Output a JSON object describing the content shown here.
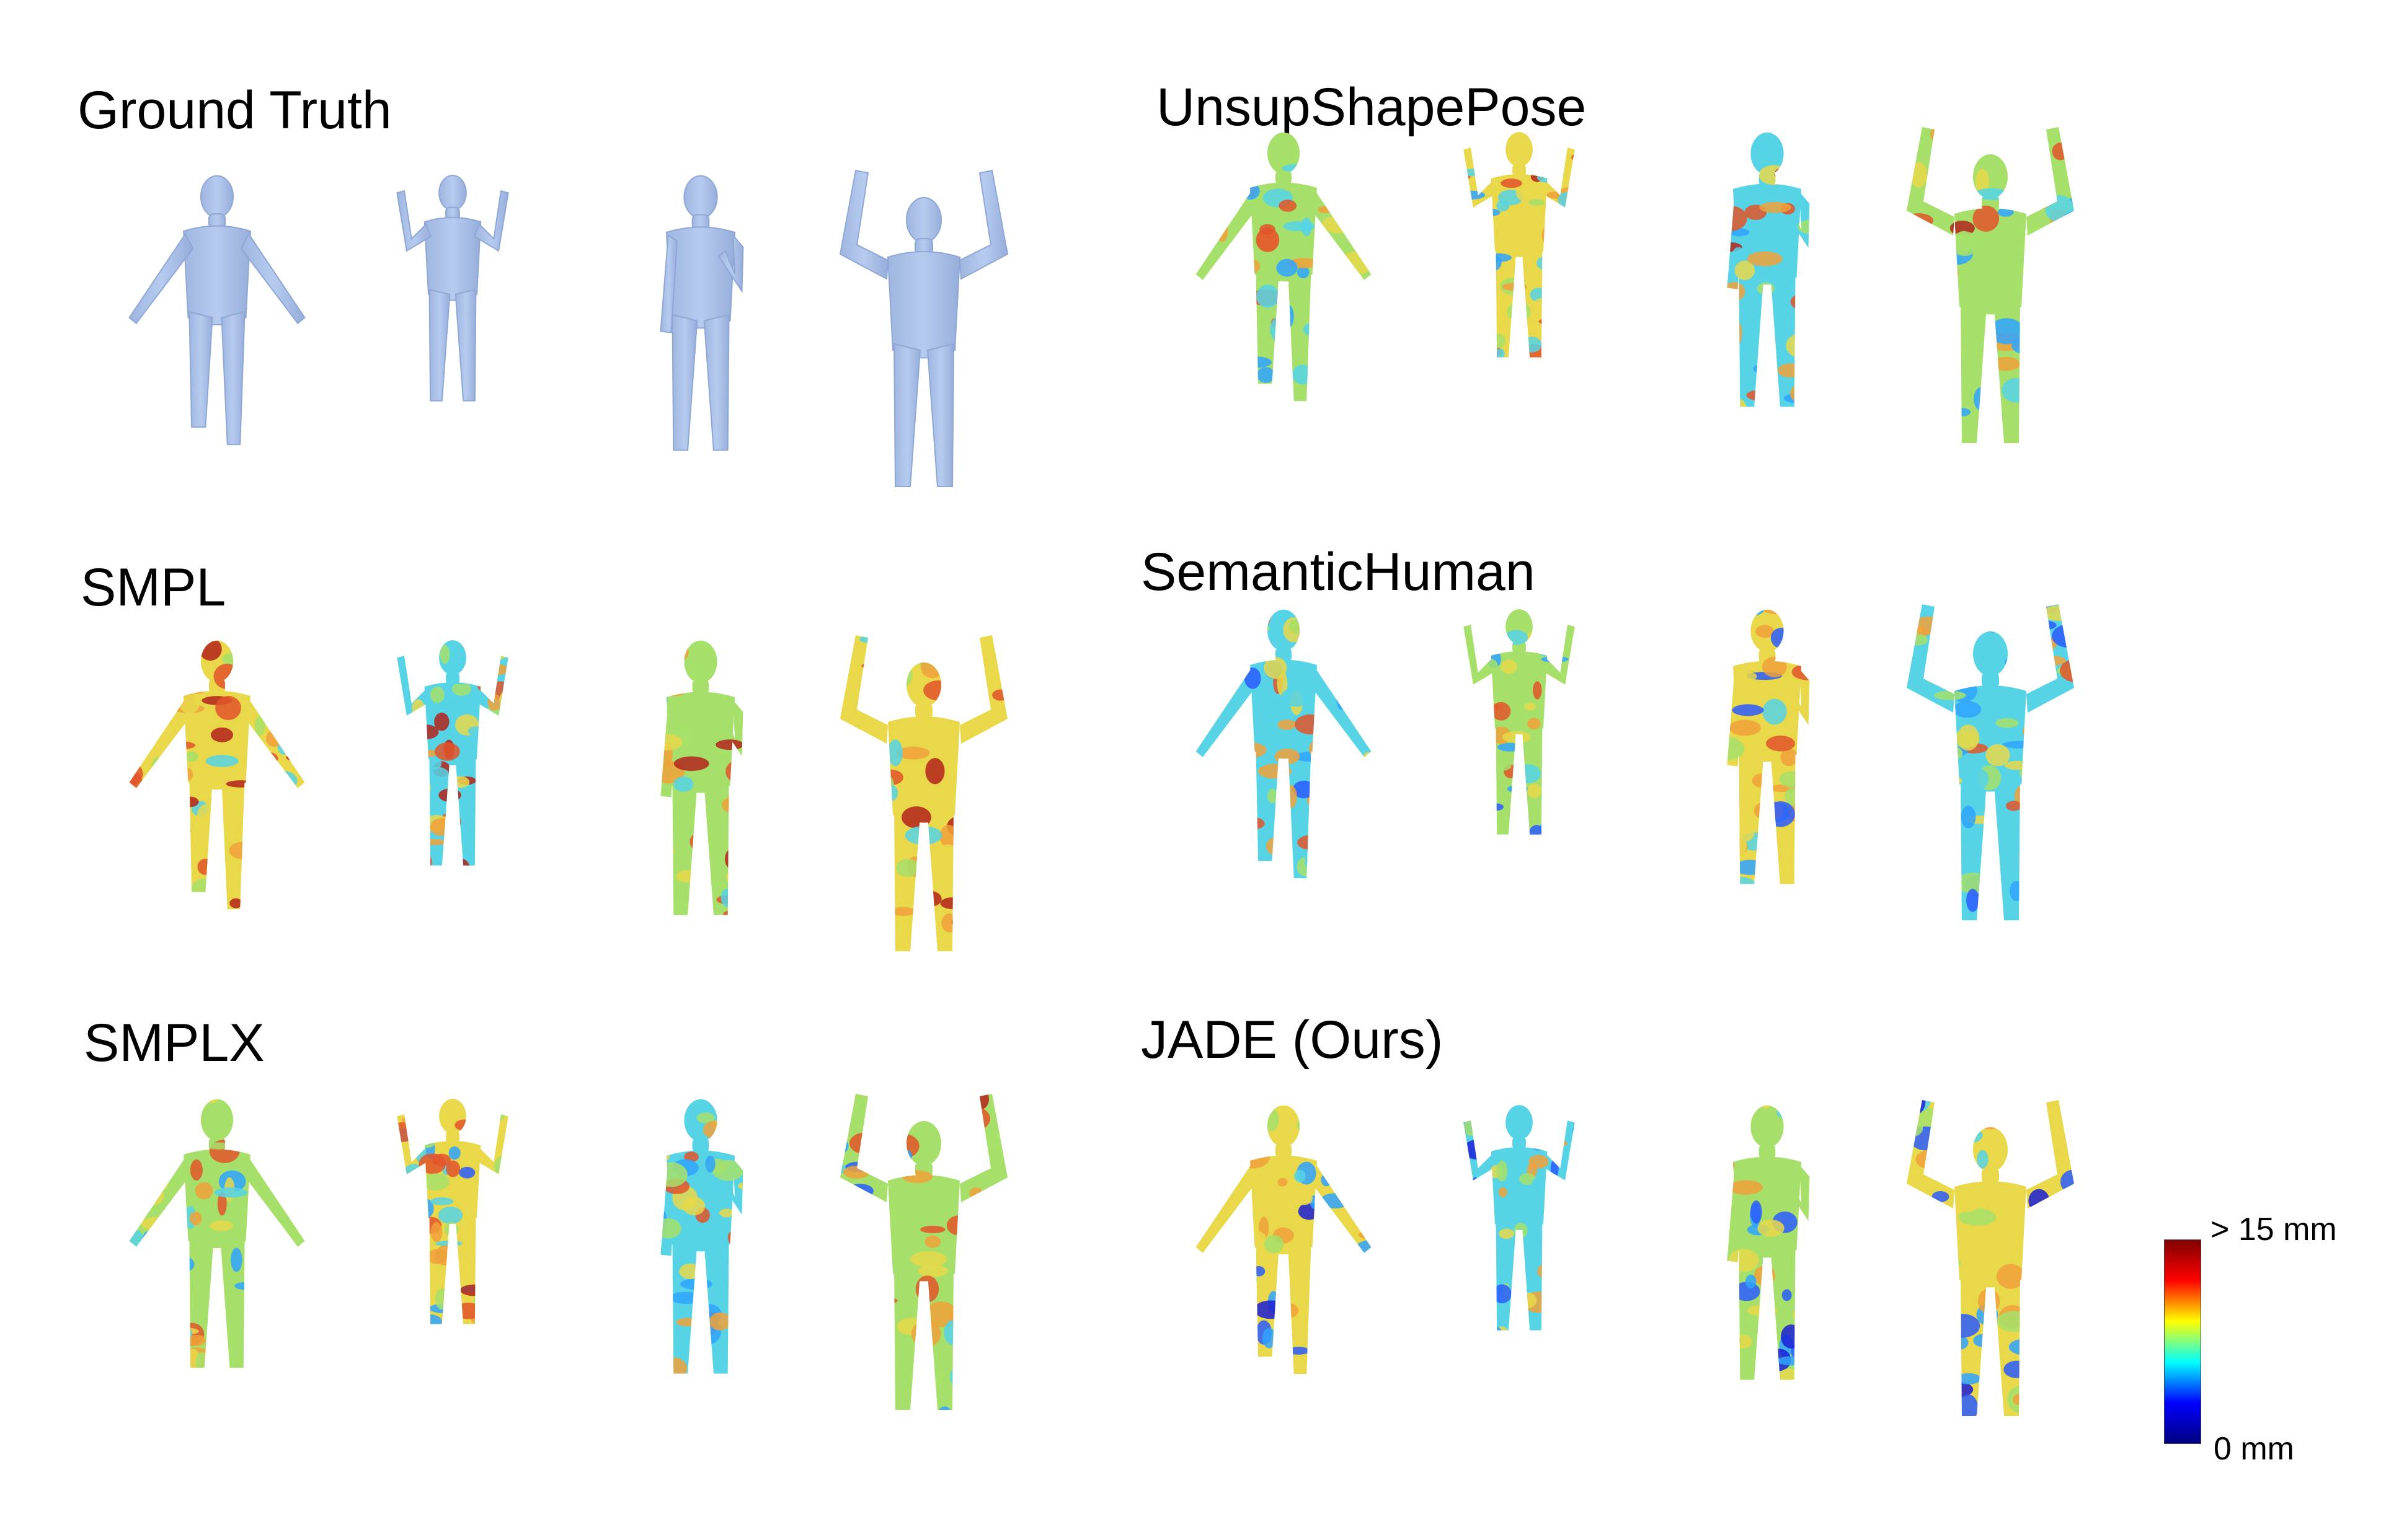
{
  "panels": [
    {
      "title": "Ground Truth",
      "colormap": "ground-truth-blue",
      "figures": [
        {
          "pose": "arms-out-step"
        },
        {
          "pose": "hands-up-small"
        },
        {
          "pose": "hand-to-chest"
        },
        {
          "pose": "arms-raised"
        }
      ]
    },
    {
      "title": "UnsupShapePose",
      "colormap": "error-jet",
      "figures": [
        {
          "pose": "arms-out-step"
        },
        {
          "pose": "hands-up-small"
        },
        {
          "pose": "hand-to-chest"
        },
        {
          "pose": "arms-raised"
        }
      ]
    },
    {
      "title": "SMPL",
      "colormap": "error-jet",
      "figures": [
        {
          "pose": "arms-out-step"
        },
        {
          "pose": "hands-up-small"
        },
        {
          "pose": "hand-to-chest"
        },
        {
          "pose": "arms-raised"
        }
      ]
    },
    {
      "title": "SemanticHuman",
      "colormap": "error-jet",
      "figures": [
        {
          "pose": "arms-out-step"
        },
        {
          "pose": "hands-up-small"
        },
        {
          "pose": "hand-to-chest"
        },
        {
          "pose": "arms-raised"
        }
      ]
    },
    {
      "title": "SMPLX",
      "colormap": "error-jet",
      "figures": [
        {
          "pose": "arms-out"
        },
        {
          "pose": "hands-up-small"
        },
        {
          "pose": "hand-to-chest"
        },
        {
          "pose": "arms-raised"
        }
      ]
    },
    {
      "title": "JADE (Ours)",
      "colormap": "error-jet",
      "figures": [
        {
          "pose": "arms-out-step"
        },
        {
          "pose": "hands-up-small"
        },
        {
          "pose": "hand-to-chest"
        },
        {
          "pose": "arms-raised"
        }
      ]
    }
  ],
  "colorbar": {
    "max_label": "> 15 mm",
    "min_label": "0 mm",
    "colors": [
      "#00007f",
      "#0000ff",
      "#00ffff",
      "#ffff00",
      "#ff0000",
      "#7f0000"
    ]
  },
  "colors": {
    "ground_truth": "#a9bfe8",
    "ground_truth_edge": "#8ea7d4"
  }
}
